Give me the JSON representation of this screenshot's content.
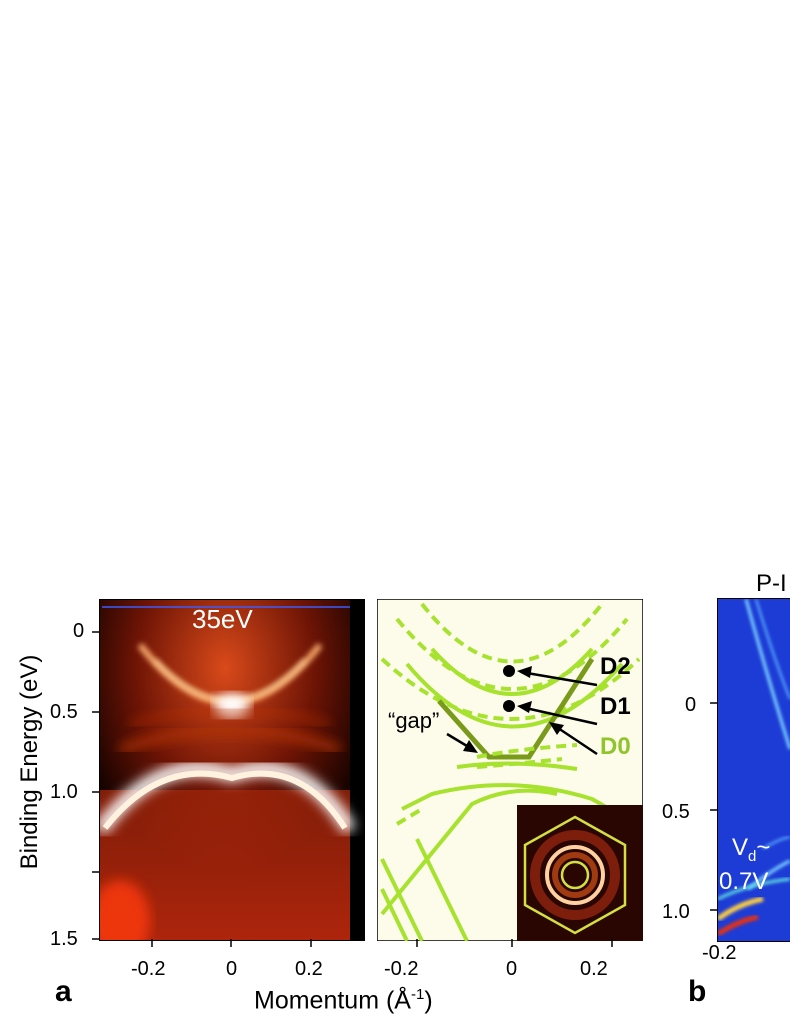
{
  "figure": {
    "panel_a": {
      "letter": "a",
      "photon_energy_label": "35eV",
      "y_axis_label": "Binding Energy (eV)",
      "y_ticks": [
        "0",
        "0.5",
        "1.0",
        "1.5"
      ],
      "x_ticks": [
        "-0.2",
        "0",
        "0.2"
      ]
    },
    "panel_model": {
      "x_ticks": [
        "-0.2",
        "0",
        "0.2"
      ],
      "labels": {
        "d2": "D2",
        "d1": "D1",
        "d0": "D0",
        "gap": "“gap”"
      },
      "colors": {
        "band": "#a6e22e",
        "band_dark": "#7a9a1a",
        "background": "#fdfbea"
      }
    },
    "shared_x_axis_label": "Momentum (Å",
    "shared_x_axis_sup": "-1",
    "shared_x_axis_tail": ")",
    "panel_b": {
      "letter": "b",
      "title_fragment": "P-I",
      "y_ticks": [
        "0",
        "0.5",
        "1.0"
      ],
      "x_ticks": [
        "-0.2"
      ],
      "vd_label_main": "V",
      "vd_label_sub": "d",
      "vd_label_tail": "~",
      "vd_value": "0.7V"
    }
  }
}
